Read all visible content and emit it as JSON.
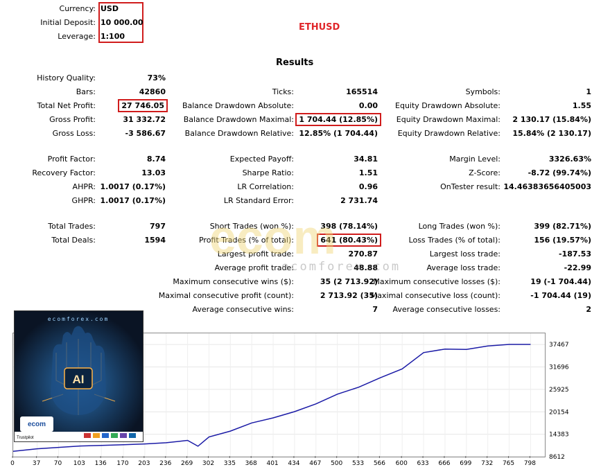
{
  "header": {
    "currency_label": "Currency:",
    "currency_value": "USD",
    "deposit_label": "Initial Deposit:",
    "deposit_value": "10 000.00",
    "leverage_label": "Leverage:",
    "leverage_value": "1:100",
    "symbol": "ETHUSD",
    "results_title": "Results"
  },
  "stats": {
    "history_quality": {
      "label": "History Quality:",
      "value": "73%"
    },
    "bars": {
      "label": "Bars:",
      "value": "42860"
    },
    "total_net_profit": {
      "label": "Total Net Profit:",
      "value": "27 746.05"
    },
    "gross_profit": {
      "label": "Gross Profit:",
      "value": "31 332.72"
    },
    "gross_loss": {
      "label": "Gross Loss:",
      "value": "-3 586.67"
    },
    "ticks": {
      "label": "Ticks:",
      "value": "165514"
    },
    "balance_dd_abs": {
      "label": "Balance Drawdown Absolute:",
      "value": "0.00"
    },
    "balance_dd_max": {
      "label": "Balance Drawdown Maximal:",
      "value": "1 704.44 (12.85%)"
    },
    "balance_dd_rel": {
      "label": "Balance Drawdown Relative:",
      "value": "12.85% (1 704.44)"
    },
    "symbols": {
      "label": "Symbols:",
      "value": "1"
    },
    "equity_dd_abs": {
      "label": "Equity Drawdown Absolute:",
      "value": "1.55"
    },
    "equity_dd_max": {
      "label": "Equity Drawdown Maximal:",
      "value": "2 130.17 (15.84%)"
    },
    "equity_dd_rel": {
      "label": "Equity Drawdown Relative:",
      "value": "15.84% (2 130.17)"
    },
    "profit_factor": {
      "label": "Profit Factor:",
      "value": "8.74"
    },
    "recovery_factor": {
      "label": "Recovery Factor:",
      "value": "13.03"
    },
    "ahpr": {
      "label": "AHPR:",
      "value": "1.0017 (0.17%)"
    },
    "ghpr": {
      "label": "GHPR:",
      "value": "1.0017 (0.17%)"
    },
    "expected_payoff": {
      "label": "Expected Payoff:",
      "value": "34.81"
    },
    "sharpe_ratio": {
      "label": "Sharpe Ratio:",
      "value": "1.51"
    },
    "lr_correlation": {
      "label": "LR Correlation:",
      "value": "0.96"
    },
    "lr_std_error": {
      "label": "LR Standard Error:",
      "value": "2 731.74"
    },
    "margin_level": {
      "label": "Margin Level:",
      "value": "3326.63%"
    },
    "z_score": {
      "label": "Z-Score:",
      "value": "-8.72 (99.74%)"
    },
    "ontester_result": {
      "label": "OnTester result:",
      "value": "14.46383656405003"
    },
    "total_trades": {
      "label": "Total Trades:",
      "value": "797"
    },
    "total_deals": {
      "label": "Total Deals:",
      "value": "1594"
    },
    "short_trades": {
      "label": "Short Trades (won %):",
      "value": "398 (78.14%)"
    },
    "profit_trades": {
      "label": "Profit Trades (% of total):",
      "value": "641 (80.43%)"
    },
    "largest_profit": {
      "label": "Largest profit trade:",
      "value": "270.87"
    },
    "average_profit": {
      "label": "Average profit trade:",
      "value": "48.88"
    },
    "max_consec_wins": {
      "label": "Maximum consecutive wins ($):",
      "value": "35 (2 713.92)"
    },
    "maximal_consec_profit": {
      "label": "Maximal consecutive profit (count):",
      "value": "2 713.92 (35)"
    },
    "avg_consec_wins": {
      "label": "Average consecutive wins:",
      "value": "7"
    },
    "long_trades": {
      "label": "Long Trades (won %):",
      "value": "399 (82.71%)"
    },
    "loss_trades": {
      "label": "Loss Trades (% of total):",
      "value": "156 (19.57%)"
    },
    "largest_loss": {
      "label": "Largest loss trade:",
      "value": "-187.53"
    },
    "average_loss": {
      "label": "Average loss trade:",
      "value": "-22.99"
    },
    "max_consec_losses": {
      "label": "Maximum consecutive losses ($):",
      "value": "19 (-1 704.44)"
    },
    "maximal_consec_loss": {
      "label": "Maximal consecutive loss (count):",
      "value": "-1 704.44 (19)"
    },
    "avg_consec_losses": {
      "label": "Average consecutive losses:",
      "value": "2"
    }
  },
  "watermark": {
    "brand": "ecom",
    "site": "ecomforex.com"
  },
  "ad": {
    "site": "ecomforex.com",
    "chip_text": "AI",
    "brand": "ecom",
    "trustpilot": "Trustpilot"
  },
  "chart_data": {
    "type": "line",
    "series": [
      {
        "color": "#1a1aa6",
        "x": [
          0,
          37,
          70,
          103,
          136,
          170,
          203,
          236,
          269,
          285,
          302,
          335,
          368,
          401,
          434,
          467,
          500,
          533,
          566,
          600,
          633,
          666,
          699,
          732,
          765,
          798
        ],
        "y": [
          10000,
          10650,
          11000,
          11350,
          11500,
          11700,
          11900,
          12200,
          12800,
          11300,
          13700,
          15200,
          17300,
          18600,
          20200,
          22200,
          24700,
          26500,
          28900,
          31200,
          35400,
          36300,
          36200,
          37100,
          37500,
          37500
        ]
      }
    ],
    "x_ticks": [
      "0",
      "37",
      "70",
      "103",
      "136",
      "170",
      "203",
      "236",
      "269",
      "302",
      "335",
      "368",
      "401",
      "434",
      "467",
      "500",
      "533",
      "566",
      "600",
      "633",
      "666",
      "699",
      "732",
      "765",
      "798"
    ],
    "y_ticks": [
      "37467",
      "31696",
      "25925",
      "20154",
      "14383",
      "8612"
    ],
    "xlim": [
      0,
      820
    ],
    "ylim": [
      8612,
      40353
    ],
    "grid": true
  }
}
